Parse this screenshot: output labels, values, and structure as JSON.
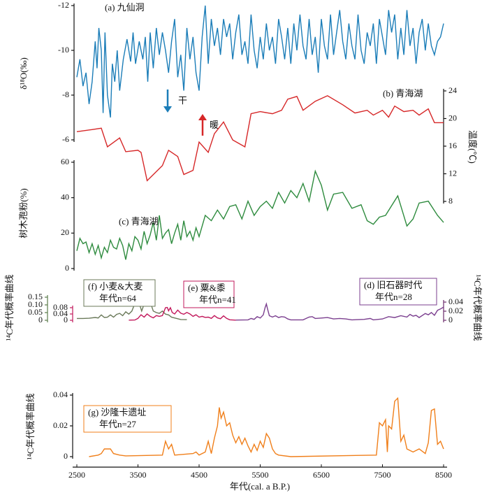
{
  "chart_data": [
    {
      "type": "line",
      "annotation": [
        "(a) 九仙洞"
      ],
      "ylabel": "δ¹⁸O(‰)",
      "note": "干",
      "color": "#1b7db8",
      "xlim": [
        2500,
        8500
      ],
      "ylim": [
        -6,
        -12
      ],
      "yticks": [
        -12,
        -10,
        -8,
        -6
      ],
      "x": [
        2500,
        2550,
        2600,
        2650,
        2700,
        2750,
        2800,
        2830,
        2860,
        2900,
        2930,
        2960,
        3000,
        3050,
        3080,
        3120,
        3160,
        3200,
        3260,
        3320,
        3380,
        3420,
        3460,
        3520,
        3580,
        3620,
        3660,
        3700,
        3750,
        3800,
        3850,
        3900,
        3950,
        4000,
        4050,
        4100,
        4150,
        4200,
        4250,
        4300,
        4350,
        4400,
        4450,
        4500,
        4550,
        4600,
        4650,
        4700,
        4750,
        4800,
        4850,
        4900,
        4950,
        5000,
        5050,
        5100,
        5150,
        5200,
        5250,
        5300,
        5350,
        5400,
        5450,
        5500,
        5550,
        5600,
        5650,
        5700,
        5750,
        5800,
        5850,
        5900,
        5950,
        6000,
        6050,
        6100,
        6150,
        6200,
        6250,
        6300,
        6350,
        6400,
        6450,
        6500,
        6550,
        6600,
        6650,
        6700,
        6750,
        6800,
        6850,
        6900,
        6950,
        7000,
        7050,
        7100,
        7150,
        7200,
        7250,
        7300,
        7350,
        7400,
        7450,
        7500,
        7550,
        7600,
        7650,
        7700,
        7750,
        7800,
        7850,
        7900,
        7950,
        8000,
        8050,
        8100,
        8150,
        8200,
        8250,
        8300,
        8350,
        8400,
        8450,
        8500
      ],
      "values": [
        -8.8,
        -9.6,
        -8.4,
        -9.0,
        -7.6,
        -8.6,
        -10.4,
        -9.2,
        -11.0,
        -10.0,
        -7.2,
        -10.8,
        -8.0,
        -7.0,
        -9.4,
        -8.6,
        -10.0,
        -8.2,
        -9.6,
        -10.5,
        -9.5,
        -10.8,
        -9.4,
        -10.4,
        -9.6,
        -10.6,
        -8.6,
        -10.8,
        -9.2,
        -11.0,
        -9.8,
        -10.8,
        -10.0,
        -9.0,
        -10.4,
        -11.4,
        -8.8,
        -9.8,
        -8.2,
        -11.0,
        -9.6,
        -10.6,
        -9.0,
        -8.2,
        -10.6,
        -12.0,
        -9.4,
        -11.4,
        -10.2,
        -11.0,
        -9.8,
        -11.4,
        -10.6,
        -11.2,
        -9.6,
        -10.8,
        -11.6,
        -9.8,
        -10.4,
        -9.4,
        -11.6,
        -10.0,
        -9.2,
        -10.6,
        -9.6,
        -11.2,
        -10.0,
        -10.6,
        -9.4,
        -11.4,
        -10.6,
        -9.6,
        -11.0,
        -9.4,
        -11.2,
        -10.0,
        -11.6,
        -10.2,
        -9.6,
        -11.4,
        -9.8,
        -10.6,
        -9.0,
        -11.4,
        -10.2,
        -9.6,
        -11.6,
        -9.8,
        -10.8,
        -11.8,
        -10.4,
        -9.6,
        -11.2,
        -10.2,
        -9.6,
        -11.6,
        -10.0,
        -9.4,
        -10.8,
        -10.2,
        -11.2,
        -9.4,
        -11.4,
        -10.6,
        -9.8,
        -11.8,
        -10.8,
        -11.6,
        -9.6,
        -11.0,
        -9.8,
        -11.8,
        -10.2,
        -11.0,
        -9.4,
        -10.8,
        -11.4,
        -10.0,
        -11.2,
        -10.2,
        -9.8,
        -10.4,
        -10.6,
        -11.2
      ]
    },
    {
      "type": "line",
      "annotation": [
        "(b) 青海湖"
      ],
      "ylabel": "温度(℃)",
      "note": "暖",
      "color": "#d62728",
      "xlim": [
        2500,
        8500
      ],
      "ylim": [
        8,
        24
      ],
      "yticks": [
        8,
        12,
        16,
        20,
        24
      ],
      "x": [
        2500,
        2750,
        2900,
        3000,
        3200,
        3300,
        3500,
        3550,
        3650,
        3900,
        4000,
        4150,
        4250,
        4400,
        4500,
        4650,
        4750,
        4900,
        5050,
        5250,
        5350,
        5500,
        5700,
        5850,
        5950,
        6100,
        6200,
        6400,
        6600,
        6850,
        7050,
        7250,
        7350,
        7500,
        7600,
        7700,
        7850,
        8000,
        8100,
        8250,
        8350,
        8500
      ],
      "values": [
        18.1,
        18.4,
        18.6,
        15.9,
        17.2,
        15.2,
        15.4,
        15.1,
        11.0,
        13.2,
        15.4,
        14.5,
        11.9,
        12.5,
        16.6,
        15.1,
        17.8,
        19.5,
        16.9,
        15.9,
        20.7,
        21.0,
        20.7,
        21.2,
        22.8,
        23.2,
        21.2,
        22.5,
        23.3,
        22.0,
        20.8,
        21.2,
        20.5,
        21.2,
        20.2,
        21.8,
        21.0,
        21.2,
        20.5,
        21.4,
        19.4,
        19.4
      ]
    },
    {
      "type": "line",
      "annotation": [
        "(c) 青海湖"
      ],
      "ylabel": "树木孢粉(%)",
      "color": "#2e8b3e",
      "xlim": [
        2500,
        8500
      ],
      "ylim": [
        0,
        60
      ],
      "yticks": [
        0,
        20,
        40,
        60
      ],
      "x": [
        2500,
        2550,
        2600,
        2650,
        2700,
        2750,
        2800,
        2850,
        2900,
        2950,
        3000,
        3050,
        3100,
        3150,
        3200,
        3250,
        3300,
        3350,
        3400,
        3450,
        3500,
        3550,
        3600,
        3650,
        3700,
        3750,
        3800,
        3850,
        3900,
        3950,
        4000,
        4050,
        4100,
        4150,
        4200,
        4250,
        4300,
        4350,
        4400,
        4450,
        4500,
        4600,
        4700,
        4800,
        4900,
        5000,
        5100,
        5200,
        5300,
        5400,
        5500,
        5600,
        5700,
        5800,
        5900,
        6000,
        6100,
        6200,
        6300,
        6400,
        6500,
        6600,
        6700,
        6850,
        7000,
        7150,
        7250,
        7350,
        7450,
        7550,
        7750,
        7900,
        8000,
        8100,
        8250,
        8400,
        8500
      ],
      "values": [
        10,
        17,
        14,
        15,
        9,
        14,
        8,
        13,
        6,
        12,
        9,
        16,
        12,
        11,
        17,
        13,
        5,
        14,
        10,
        18,
        16,
        11,
        21,
        14,
        19,
        26,
        16,
        30,
        17,
        20,
        22,
        14,
        20,
        25,
        16,
        27,
        18,
        21,
        16,
        23,
        18,
        30,
        27,
        33,
        28,
        35,
        36,
        28,
        38,
        30,
        35,
        38,
        34,
        43,
        37,
        44,
        40,
        48,
        38,
        55,
        47,
        33,
        42,
        43,
        34,
        36,
        27,
        25,
        29,
        30,
        41,
        24,
        28,
        37,
        38,
        30,
        26
      ]
    },
    {
      "type": "line",
      "annotation": [
        "(f) 小麦&大麦",
        "年代n=64"
      ],
      "ylabel": "¹⁴C年代概率曲线",
      "color": "#6b7a5a",
      "xlim": [
        2500,
        8500
      ],
      "ylim": [
        0,
        0.15
      ],
      "yticks": [
        0,
        0.05,
        {
          "value": 0.1,
          "label": "0.10"
        },
        0.15
      ],
      "x": [
        2500,
        2600,
        2700,
        2800,
        2850,
        2900,
        2950,
        3000,
        3050,
        3100,
        3150,
        3200,
        3250,
        3300,
        3350,
        3400,
        3450,
        3480,
        3520,
        3560,
        3600,
        3650,
        3700,
        3750,
        3800,
        3850,
        3900,
        3950,
        4000,
        4050,
        4100,
        4150,
        4200,
        4300
      ],
      "values": [
        0.012,
        0.012,
        0.013,
        0.018,
        0.015,
        0.035,
        0.018,
        0.02,
        0.035,
        0.02,
        0.038,
        0.045,
        0.03,
        0.055,
        0.04,
        0.06,
        0.11,
        0.12,
        0.11,
        0.06,
        0.105,
        0.13,
        0.12,
        0.06,
        0.05,
        0.045,
        0.06,
        0.04,
        0.035,
        0.02,
        0.015,
        0.01,
        0.005,
        0.004
      ]
    },
    {
      "type": "line",
      "annotation": [
        "(e) 粟&黍",
        "年代n=41"
      ],
      "color": "#c2185b",
      "xlim": [
        2500,
        8500
      ],
      "ylim": [
        0,
        0.08
      ],
      "yticks": [
        0,
        0.04,
        0.08
      ],
      "x": [
        3350,
        3450,
        3500,
        3550,
        3600,
        3650,
        3700,
        3750,
        3800,
        3850,
        3900,
        3950,
        3980,
        4000,
        4030,
        4060,
        4100,
        4150,
        4200,
        4250,
        4300,
        4350,
        4400,
        4450,
        4500,
        4550,
        4600,
        4650,
        4700,
        4750,
        4800,
        4850,
        4900,
        4950,
        5000,
        5100
      ],
      "values": [
        0.001,
        0.002,
        0.012,
        0.035,
        0.02,
        0.04,
        0.025,
        0.015,
        0.03,
        0.025,
        0.03,
        0.08,
        0.082,
        0.06,
        0.08,
        0.05,
        0.04,
        0.065,
        0.045,
        0.038,
        0.05,
        0.04,
        0.025,
        0.035,
        0.02,
        0.025,
        0.018,
        0.02,
        0.012,
        0.03,
        0.015,
        0.01,
        0.028,
        0.012,
        0.003,
        0.001
      ]
    },
    {
      "type": "line",
      "annotation": [
        "(d) 旧石器时代",
        "年代n=28"
      ],
      "ylabel": "¹⁴C年代概率曲线",
      "color": "#7b3f8f",
      "xlim": [
        2500,
        8500
      ],
      "ylim": [
        0,
        0.04
      ],
      "yticks": [
        0,
        0.02,
        0.04
      ],
      "x": [
        5100,
        5300,
        5350,
        5400,
        5450,
        5500,
        5550,
        5580,
        5600,
        5620,
        5650,
        5700,
        5750,
        5800,
        5850,
        5900,
        5950,
        6000,
        6200,
        6300,
        6350,
        6400,
        6500,
        6600,
        6700,
        6800,
        6900,
        7000,
        7200,
        7300,
        7350,
        7500,
        7600,
        7700,
        7800,
        7900,
        7950,
        8000,
        8050,
        8100,
        8200,
        8250,
        8300,
        8350,
        8400,
        8450,
        8500
      ],
      "values": [
        0.0005,
        0.001,
        0.004,
        0.002,
        0.008,
        0.005,
        0.012,
        0.028,
        0.036,
        0.025,
        0.01,
        0.007,
        0.01,
        0.006,
        0.008,
        0.007,
        0.003,
        0.001,
        0.001,
        0.007,
        0.008,
        0.004,
        0.005,
        0.006,
        0.003,
        0.004,
        0.003,
        0.001,
        0.002,
        0.004,
        0.001,
        0.003,
        0.008,
        0.006,
        0.01,
        0.007,
        0.013,
        0.009,
        0.011,
        0.006,
        0.015,
        0.012,
        0.017,
        0.011,
        0.022,
        0.025,
        0.029
      ]
    },
    {
      "type": "line",
      "annotation": [
        "(g) 沙隆卡遗址",
        "年代n=27"
      ],
      "ylabel": "¹⁴C年代概率曲线",
      "xlabel": "年代(cal. a B.P.)",
      "color": "#f07f1a",
      "xlim": [
        2500,
        8500
      ],
      "xticks": [
        2500,
        3500,
        4500,
        5500,
        6500,
        7500,
        8500
      ],
      "ylim": [
        0,
        0.04
      ],
      "yticks": [
        0,
        0.02,
        0.04
      ],
      "x": [
        2700,
        2850,
        2900,
        2950,
        3050,
        3100,
        3200,
        3300,
        3900,
        3950,
        4000,
        4050,
        4100,
        4400,
        4450,
        4500,
        4600,
        4650,
        4700,
        4750,
        4800,
        4830,
        4860,
        4900,
        4950,
        5000,
        5050,
        5100,
        5150,
        5200,
        5250,
        5300,
        5350,
        5400,
        5450,
        5500,
        5550,
        5600,
        5650,
        5700,
        5750,
        5800,
        6000,
        7400,
        7450,
        7500,
        7550,
        7580,
        7600,
        7650,
        7700,
        7750,
        7800,
        7850,
        7900,
        8000,
        8100,
        8200,
        8250,
        8300,
        8350,
        8400,
        8450,
        8500
      ],
      "values": [
        0,
        0.001,
        0.002,
        0.005,
        0.005,
        0.002,
        0.001,
        0.0005,
        0.001,
        0.01,
        0.005,
        0.008,
        0.001,
        0.002,
        0.003,
        0.001,
        0.003,
        0.01,
        0.002,
        0.012,
        0.02,
        0.032,
        0.025,
        0.029,
        0.02,
        0.022,
        0.014,
        0.009,
        0.013,
        0.008,
        0.012,
        0.007,
        0.003,
        0.008,
        0.004,
        0.01,
        0.006,
        0.015,
        0.012,
        0.005,
        0.002,
        0.001,
        0,
        0.001,
        0.022,
        0.02,
        0.024,
        0.003,
        0.02,
        0.018,
        0.036,
        0.038,
        0.01,
        0.014,
        0.005,
        0.003,
        0.005,
        0.002,
        0.009,
        0.03,
        0.031,
        0.008,
        0.01,
        0.005
      ]
    }
  ]
}
